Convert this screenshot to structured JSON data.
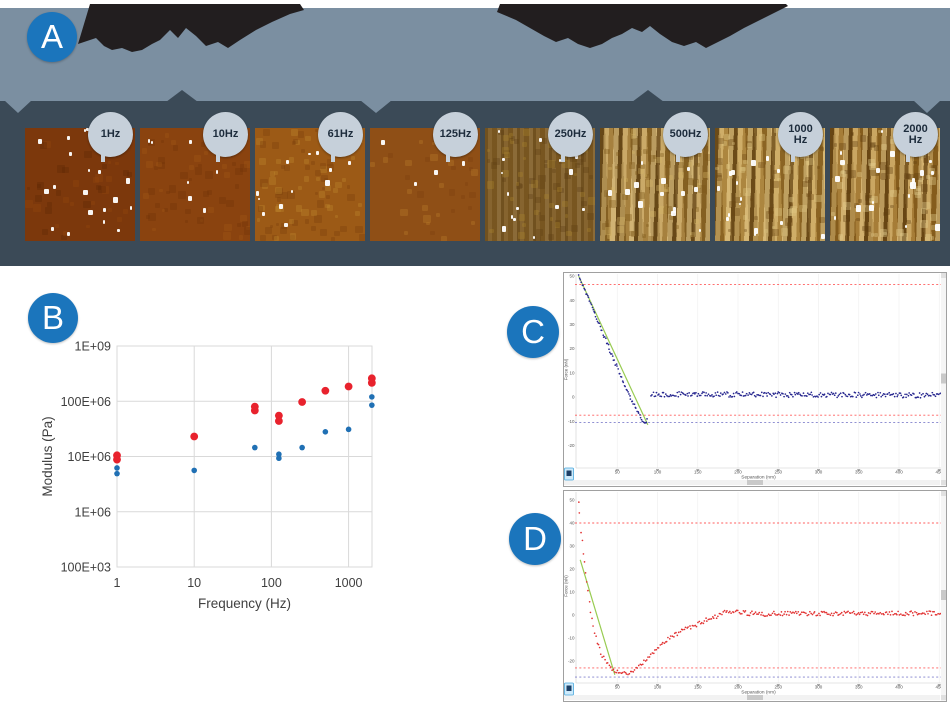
{
  "badges": {
    "a": "A",
    "b": "B",
    "c": "C",
    "d": "D"
  },
  "colors": {
    "badge_blue": "#1b75bc",
    "banner_gray": "#7b8fa1",
    "band_dark": "#3b4a57",
    "blob_dark": "#221e1f",
    "freq_badge_bg": "#c6d0da",
    "freq_badge_text": "#1d2c3c",
    "red_series": "#e8222d",
    "blue_series": "#2070b4",
    "fit_green": "#8dc63f",
    "ref_red": "#ff5c5c",
    "ref_blue": "#8080cc",
    "approach_navy": "#27278f",
    "retract_red": "#e23333",
    "grid_gray": "#d9d9d9",
    "tick_text": "#404040",
    "tiny_text": "#555555"
  },
  "afm_row": {
    "tiles": [
      {
        "label": "1Hz",
        "base": "#7c380c",
        "mottle_light": "#95490f",
        "mottle_dark": "#5f2806",
        "mottle_n": 40,
        "speckle_n": 22,
        "speckle_size": 4,
        "streak": "none"
      },
      {
        "label": "10Hz",
        "base": "#8a430f",
        "mottle_light": "#a05a16",
        "mottle_dark": "#6f3309",
        "mottle_n": 60,
        "speckle_n": 7,
        "speckle_size": 3,
        "streak": "none"
      },
      {
        "label": "61Hz",
        "base": "#9c5a16",
        "mottle_light": "#c08a2e",
        "mottle_dark": "#7a3f0c",
        "mottle_n": 95,
        "speckle_n": 12,
        "speckle_size": 4,
        "streak": "none"
      },
      {
        "label": "125Hz",
        "base": "#8f4f16",
        "mottle_light": "#b97f2c",
        "mottle_dark": "#7a3e0e",
        "mottle_n": 35,
        "speckle_n": 5,
        "speckle_size": 3,
        "streak": "none"
      },
      {
        "label": "250Hz",
        "base": "#7e5a22",
        "mottle_light": "#a8842e",
        "mottle_dark": "#5f3f14",
        "mottle_n": 85,
        "speckle_n": 18,
        "speckle_size": 3,
        "streak": "light"
      },
      {
        "label": "500Hz",
        "base": "#a97d2f",
        "mottle_light": "#d8b868",
        "mottle_dark": "#7a5518",
        "mottle_n": 70,
        "speckle_n": 15,
        "speckle_size": 4,
        "streak": "strong"
      },
      {
        "label": "1000\nHz",
        "base": "#b28430",
        "mottle_light": "#e3cc86",
        "mottle_dark": "#6b4512",
        "mottle_n": 70,
        "speckle_n": 16,
        "speckle_size": 4,
        "streak": "strong"
      },
      {
        "label": "2000\nHz",
        "base": "#aa7826",
        "mottle_light": "#e8d494",
        "mottle_dark": "#5e3c0e",
        "mottle_n": 80,
        "speckle_n": 18,
        "speckle_size": 5,
        "streak": "strong"
      }
    ]
  },
  "chart_data": [
    {
      "id": "modulus-vs-frequency",
      "type": "scatter",
      "title": "",
      "xlabel": "Frequency (Hz)",
      "ylabel": "Modulus (Pa)",
      "x_scale": "log",
      "y_scale": "log",
      "xlim": [
        1,
        2000
      ],
      "ylim": [
        100000,
        1000000000
      ],
      "grid": true,
      "legend": "none",
      "x_ticks": [
        {
          "v": 1,
          "label": "1"
        },
        {
          "v": 10,
          "label": "10"
        },
        {
          "v": 100,
          "label": "100"
        },
        {
          "v": 1000,
          "label": "1000"
        }
      ],
      "y_ticks": [
        {
          "v": 100000,
          "label": "100E+03"
        },
        {
          "v": 1000000,
          "label": "1E+06"
        },
        {
          "v": 10000000,
          "label": "10E+06"
        },
        {
          "v": 100000000,
          "label": "100E+06"
        },
        {
          "v": 1000000000,
          "label": "1E+09"
        }
      ],
      "series": [
        {
          "name": "red-modulus",
          "color_key": "red_series",
          "marker_r": 3.9,
          "points": [
            [
              1,
              10500000
            ],
            [
              1,
              8800000
            ],
            [
              10,
              23000000
            ],
            [
              61,
              80000000
            ],
            [
              61,
              68000000
            ],
            [
              125,
              55000000
            ],
            [
              125,
              44000000
            ],
            [
              250,
              97000000
            ],
            [
              500,
              155000000
            ],
            [
              1000,
              185000000
            ],
            [
              2000,
              260000000
            ],
            [
              2000,
              215000000
            ]
          ]
        },
        {
          "name": "blue-modulus",
          "color_key": "blue_series",
          "marker_r": 2.8,
          "points": [
            [
              1,
              6200000
            ],
            [
              1,
              4900000
            ],
            [
              10,
              5600000
            ],
            [
              61,
              14500000
            ],
            [
              125,
              11000000
            ],
            [
              125,
              9300000
            ],
            [
              250,
              14500000
            ],
            [
              500,
              28000000
            ],
            [
              1000,
              31000000
            ],
            [
              2000,
              120000000
            ],
            [
              2000,
              85000000
            ]
          ]
        }
      ]
    },
    {
      "id": "force-curve-approach",
      "type": "scatter",
      "xlabel": "Separation (nm)",
      "ylabel": "Force (nN)",
      "xlim": [
        0,
        460
      ],
      "ylim": [
        -27,
        52
      ],
      "x_ticks": [
        50,
        100,
        150,
        200,
        250,
        300,
        350,
        400,
        450
      ],
      "y_ticks": [
        50,
        40,
        30,
        20,
        10,
        0,
        -10,
        -20
      ],
      "ref_lines": [
        {
          "y": 46.5,
          "color_key": "ref_red"
        },
        {
          "y": -7.5,
          "color_key": "ref_red"
        },
        {
          "y": -10.5,
          "color_key": "ref_blue"
        }
      ],
      "series_color_key": "approach_navy",
      "branches": [
        {
          "path": [
            [
              2,
              50
            ],
            [
              10,
              44
            ],
            [
              20,
              36
            ],
            [
              30,
              28
            ],
            [
              40,
              20
            ],
            [
              50,
              12
            ],
            [
              60,
              4
            ],
            [
              70,
              -3
            ],
            [
              78,
              -8
            ],
            [
              85,
              -10.5
            ],
            [
              88,
              -9
            ]
          ],
          "noise": 0.8,
          "step": 1.1
        },
        {
          "path": [
            [
              92,
              1.2
            ],
            [
              455,
              0.7
            ]
          ],
          "noise": 1.1,
          "step": 1.4
        }
      ],
      "fit_line": {
        "from": [
          2,
          50
        ],
        "to": [
          88,
          -11.5
        ],
        "color_key": "fit_green"
      }
    },
    {
      "id": "force-curve-retract",
      "type": "scatter",
      "xlabel": "Separation (nm)",
      "ylabel": "Force (nN)",
      "xlim": [
        0,
        460
      ],
      "ylim": [
        -30,
        53
      ],
      "x_ticks": [
        50,
        100,
        150,
        200,
        250,
        300,
        350,
        400,
        450
      ],
      "y_ticks": [
        50,
        40,
        30,
        20,
        10,
        0,
        -10,
        -20
      ],
      "ref_lines": [
        {
          "y": 40,
          "color_key": "ref_red"
        },
        {
          "y": -23,
          "color_key": "ref_red"
        },
        {
          "y": -27,
          "color_key": "ref_blue"
        }
      ],
      "series_color_key": "retract_red",
      "branches": [
        {
          "path": [
            [
              2,
              50
            ],
            [
              3,
              44
            ],
            [
              5,
              36
            ],
            [
              8,
              27
            ],
            [
              12,
              14
            ],
            [
              17,
              2
            ],
            [
              22,
              -8
            ],
            [
              28,
              -15
            ],
            [
              35,
              -20
            ],
            [
              45,
              -24
            ],
            [
              55,
              -25.5
            ],
            [
              65,
              -25
            ],
            [
              75,
              -23.5
            ],
            [
              85,
              -20
            ],
            [
              95,
              -16
            ],
            [
              110,
              -11
            ],
            [
              125,
              -8
            ],
            [
              140,
              -5.5
            ],
            [
              155,
              -3
            ],
            [
              170,
              -1
            ],
            [
              185,
              1.5
            ],
            [
              200,
              1
            ],
            [
              230,
              0.5
            ],
            [
              455,
              0.8
            ]
          ],
          "noise": 1.0,
          "step": 1.6
        }
      ],
      "fit_line": {
        "from": [
          4,
          24
        ],
        "to": [
          47,
          -26
        ],
        "color_key": "fit_green"
      }
    }
  ]
}
